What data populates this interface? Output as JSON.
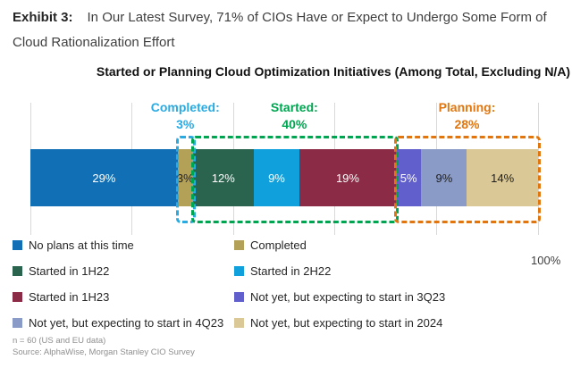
{
  "header": {
    "exhibit_label": "Exhibit 3:",
    "title": "In Our Latest Survey, 71% of CIOs Have or Expect to Undergo Some Form of Cloud Rationalization Effort"
  },
  "chart_data": {
    "type": "bar",
    "orientation": "horizontal",
    "stacked": true,
    "title": "Started or Planning Cloud Optimization Initiatives (Among Total, Excluding N/A)",
    "axis": {
      "xlim": [
        0,
        100
      ],
      "max_label": "100%",
      "gridlines_pct": [
        0,
        20,
        40,
        60,
        80,
        100
      ]
    },
    "legend_position": "bottom",
    "segments": [
      {
        "label": "No plans at this time",
        "value": 29,
        "display": "29%",
        "color": "#1170b5",
        "text_color": "#ffffff"
      },
      {
        "label": "Completed",
        "value": 3,
        "display": "3%",
        "color": "#b4a158",
        "text_color": "#1f1f1f"
      },
      {
        "label": "Started in 1H22",
        "value": 12,
        "display": "12%",
        "color": "#2a634e",
        "text_color": "#ffffff"
      },
      {
        "label": "Started in 2H22",
        "value": 9,
        "display": "9%",
        "color": "#10a0dc",
        "text_color": "#ffffff"
      },
      {
        "label": "Started in 1H23",
        "value": 19,
        "display": "19%",
        "color": "#8c2b46",
        "text_color": "#ffffff"
      },
      {
        "label": "Not yet, but expecting to start in 3Q23",
        "value": 5,
        "display": "5%",
        "color": "#615fcc",
        "text_color": "#ffffff"
      },
      {
        "label": "Not yet, but expecting to start in 4Q23",
        "value": 9,
        "display": "9%",
        "color": "#8a9bc7",
        "text_color": "#1f1f1f"
      },
      {
        "label": "Not yet, but expecting to start in 2024",
        "value": 14,
        "display": "14%",
        "color": "#dac896",
        "text_color": "#1f1f1f"
      }
    ],
    "overlays": [
      {
        "name": "completed",
        "label": "Completed:",
        "value_label": "3%",
        "total": 3,
        "color": "#29abe2",
        "start_pct": 29,
        "end_pct": 32
      },
      {
        "name": "started",
        "label": "Started:",
        "value_label": "40%",
        "total": 40,
        "color": "#00a551",
        "start_pct": 32,
        "end_pct": 72
      },
      {
        "name": "planning",
        "label": "Planning:",
        "value_label": "28%",
        "total": 28,
        "color": "#e2760e",
        "start_pct": 72,
        "end_pct": 100
      }
    ]
  },
  "footnotes": {
    "sample": "n = 60 (US and EU data)",
    "source": "Source: AlphaWise, Morgan Stanley CIO Survey"
  }
}
